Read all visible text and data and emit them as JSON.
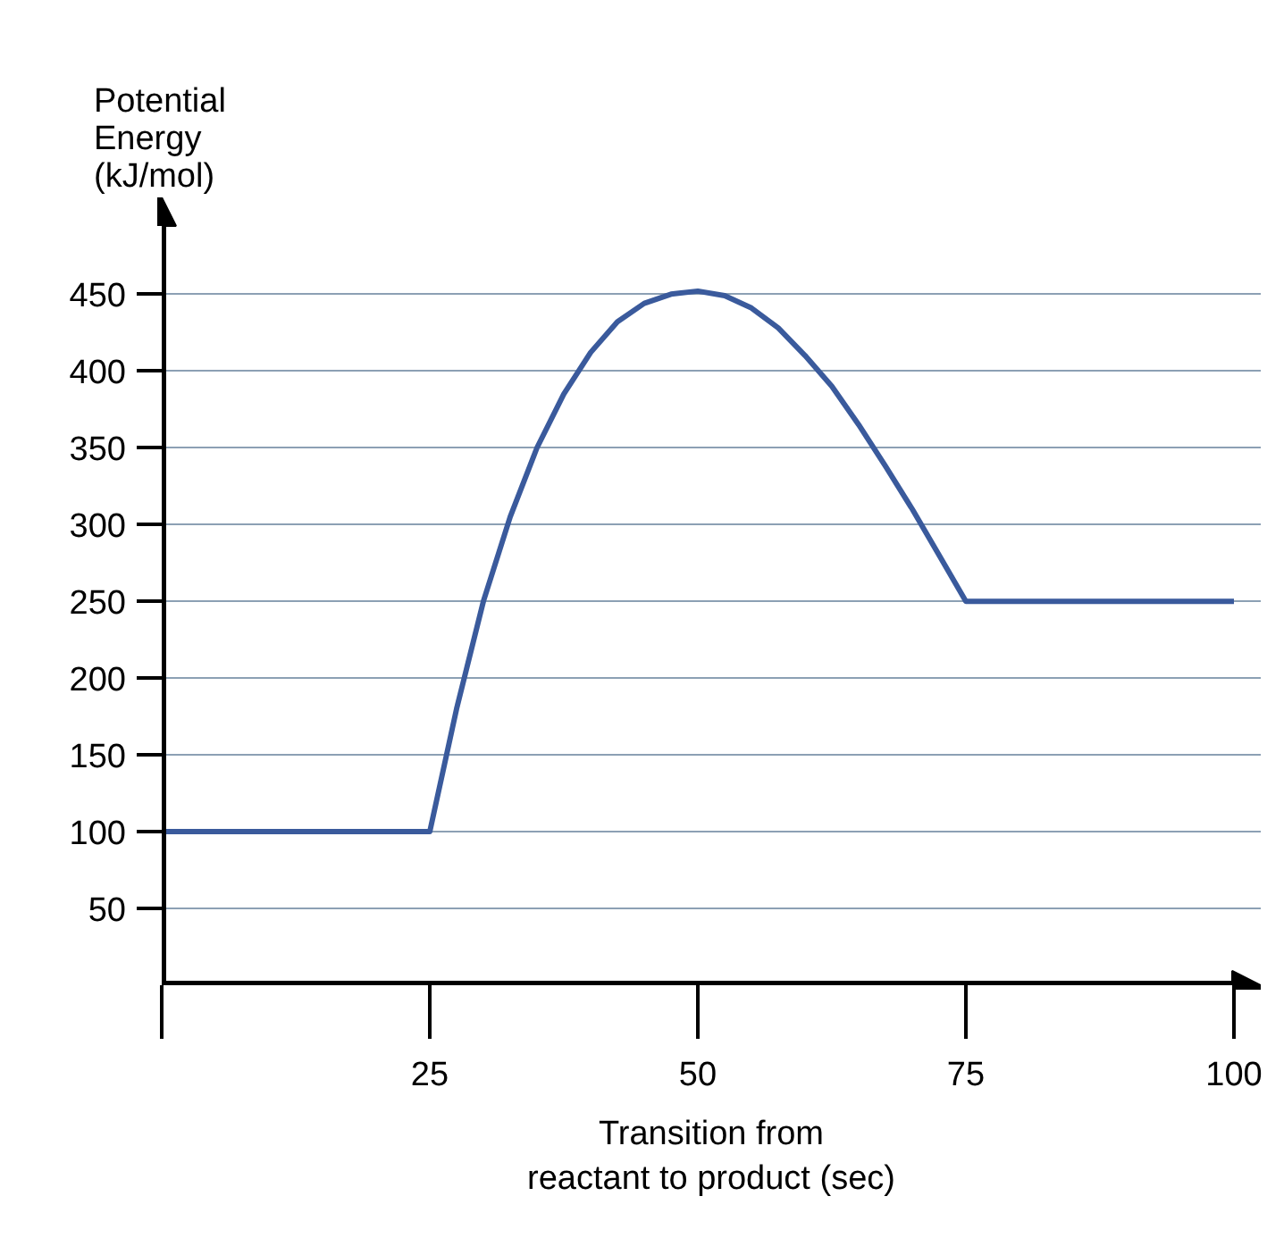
{
  "chart_data": {
    "type": "line",
    "xlabel": "Transition from\nreactant to product (sec)",
    "ylabel": "Potential\nEnergy\n(kJ/mol)",
    "x": [
      0,
      25,
      27.5,
      30,
      32.5,
      35,
      37.5,
      40,
      42.5,
      45,
      47.5,
      50,
      52.5,
      55,
      57.5,
      60,
      62.5,
      65,
      67.5,
      70,
      72.5,
      75,
      100
    ],
    "series": [
      {
        "color": "#3a5a9c",
        "values": [
          100,
          100,
          180,
          250,
          305,
          350,
          385,
          412,
          432,
          444,
          450,
          452,
          449,
          441,
          428,
          410,
          390,
          365,
          338,
          310,
          280,
          250,
          250
        ]
      }
    ],
    "xlim": [
      0,
      102.5
    ],
    "ylim": [
      0,
      513
    ],
    "xticks": [
      {
        "value": 0,
        "label": null
      },
      25,
      50,
      75,
      100
    ],
    "yticks": [
      50,
      100,
      150,
      200,
      250,
      300,
      350,
      400,
      450
    ],
    "grid": "y"
  }
}
